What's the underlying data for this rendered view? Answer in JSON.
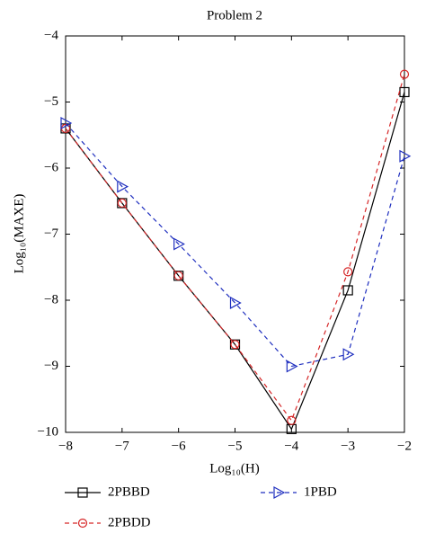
{
  "chart_data": {
    "type": "line",
    "title": "Problem 2",
    "x_label": "Log₁₀(H)",
    "y_label": "Log₁₀(MAXE)",
    "x": [
      -8,
      -7,
      -6,
      -5,
      -4,
      -3,
      -2
    ],
    "series": [
      {
        "name": "2PBBD",
        "color": "#000000",
        "dash": false,
        "marker": "square",
        "values": [
          -5.4,
          -6.53,
          -7.63,
          -8.67,
          -9.95,
          -7.85,
          -4.85
        ]
      },
      {
        "name": "2PBDD",
        "color": "#d62728",
        "dash": true,
        "marker": "circle",
        "values": [
          -5.4,
          -6.53,
          -7.63,
          -8.67,
          -9.82,
          -7.57,
          -4.58
        ]
      },
      {
        "name": "1PBD",
        "color": "#1f2fbf",
        "dash": true,
        "marker": "triangle-right",
        "values": [
          -5.32,
          -6.28,
          -7.15,
          -8.04,
          -9.0,
          -8.82,
          -5.82
        ]
      }
    ],
    "xlim": [
      -8,
      -2
    ],
    "xticks": [
      {
        "value": -8,
        "label": "−8"
      },
      {
        "value": -7,
        "label": "−7"
      },
      {
        "value": -6,
        "label": "−6"
      },
      {
        "value": -5,
        "label": "−5"
      },
      {
        "value": -4,
        "label": "−4"
      },
      {
        "value": -3,
        "label": "−3"
      },
      {
        "value": -2,
        "label": "−2"
      }
    ],
    "ylim": [
      -10,
      -4
    ],
    "yticks": [
      {
        "value": -10,
        "label": "−10"
      },
      {
        "value": -9,
        "label": "−9"
      },
      {
        "value": -8,
        "label": "−8"
      },
      {
        "value": -7,
        "label": "−7"
      },
      {
        "value": -6,
        "label": "−6"
      },
      {
        "value": -5,
        "label": "−5"
      },
      {
        "value": -4,
        "label": "−4"
      }
    ],
    "grid": false,
    "legend": "bottom"
  }
}
